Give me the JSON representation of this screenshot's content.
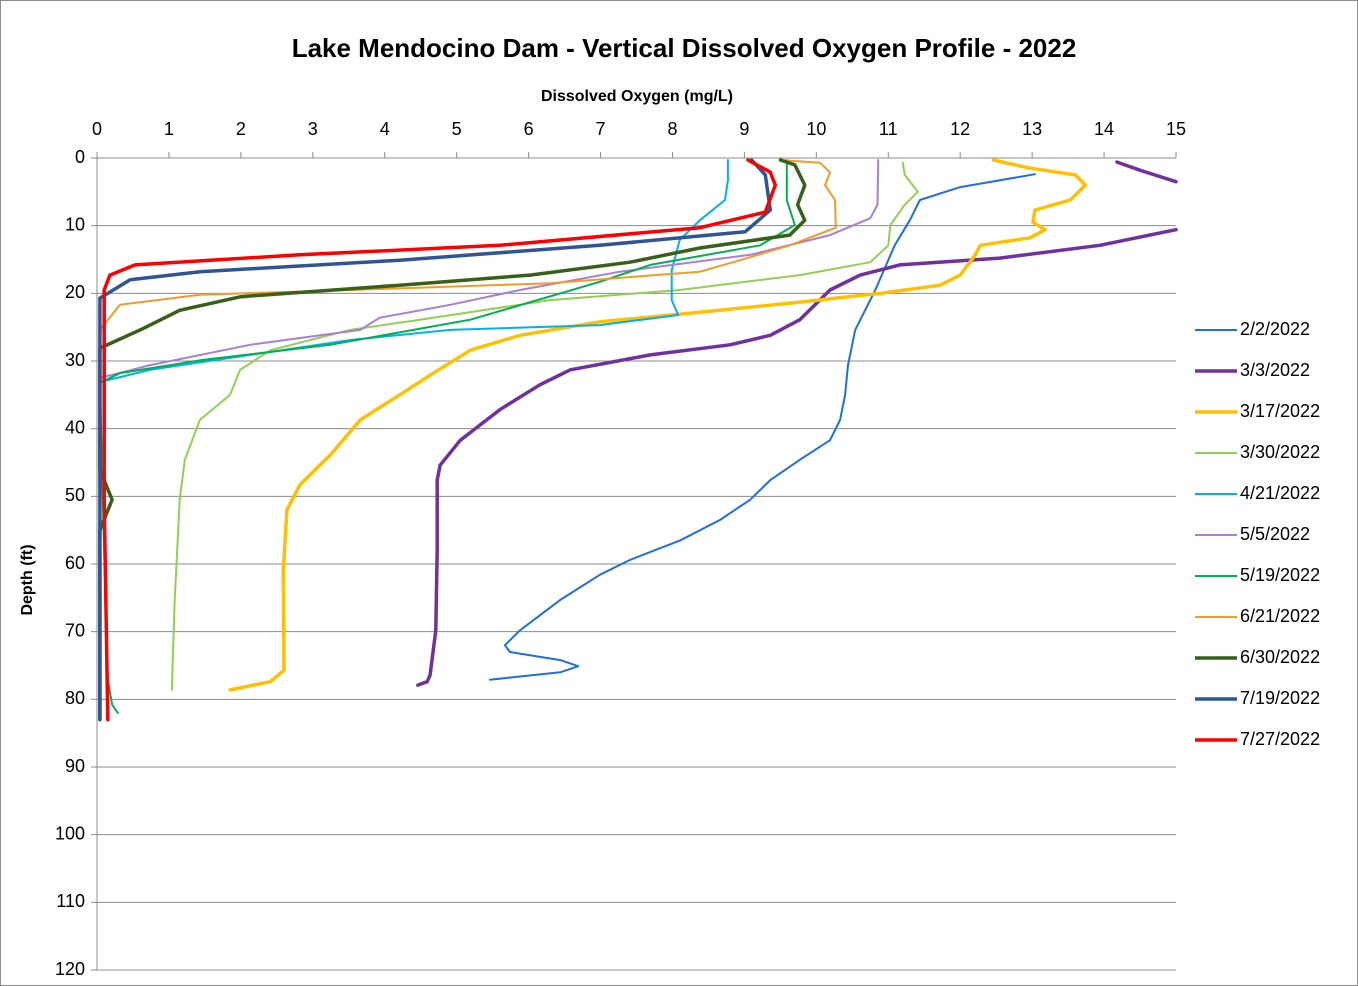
{
  "chart_data": {
    "type": "profile",
    "title": "Lake Mendocino Dam - Vertical Dissolved Oxygen Profile - 2022",
    "x_label": "Dissolved Oxygen (mg/L)",
    "y_label": "Depth (ft)",
    "xlim": [
      0,
      15
    ],
    "xticks": [
      0,
      1,
      2,
      3,
      4,
      5,
      6,
      7,
      8,
      9,
      10,
      11,
      12,
      13,
      14,
      15
    ],
    "ylim": [
      0,
      120
    ],
    "yticks": [
      0,
      10,
      20,
      30,
      40,
      50,
      60,
      70,
      80,
      90,
      100,
      110,
      120
    ],
    "y_inverted": true,
    "x_axis_position": "top",
    "grid": true,
    "legend": "right",
    "series": [
      {
        "name": "2/2/2022",
        "color": "#1f6fe0",
        "x": [
          13.04,
          12.0,
          11.44,
          11.3,
          11.09,
          10.82,
          10.54,
          10.44,
          10.4,
          10.33,
          10.19,
          9.77,
          9.36,
          9.08,
          8.66,
          8.11,
          7.41,
          6.99,
          6.44,
          5.88,
          5.67,
          5.74,
          6.44,
          6.69,
          6.44,
          5.46
        ],
        "y": [
          2.4,
          4.3,
          6.2,
          9.2,
          12.9,
          19.5,
          25.4,
          30.6,
          35,
          38.7,
          41.7,
          44.6,
          47.6,
          50.5,
          53.5,
          56.5,
          59.4,
          61.6,
          65.3,
          69.8,
          72,
          73,
          74.2,
          75.1,
          76,
          77.1
        ]
      },
      {
        "name": "3/3/2022",
        "color": "#7030a0",
        "x": [
          14.18,
          14.5,
          15,
          null,
          15,
          13.94,
          12.55,
          11.16,
          10.61,
          10.19,
          9.77,
          9.36,
          8.8,
          7.69,
          6.58,
          6.16,
          5.6,
          5.05,
          4.77,
          4.73,
          4.73,
          4.71,
          4.63,
          4.59,
          4.46
        ],
        "y": [
          0.6,
          1.8,
          3.5,
          null,
          10.6,
          12.9,
          14.8,
          15.8,
          17.3,
          19.5,
          23.9,
          26.2,
          27.6,
          29.1,
          31.3,
          33.5,
          37.2,
          41.7,
          45.4,
          47.6,
          57.9,
          69.8,
          76.4,
          77.4,
          77.9
        ]
      },
      {
        "name": "3/17/2022",
        "color": "#ffc000",
        "x": [
          12.46,
          12.97,
          13.6,
          13.74,
          13.53,
          13.04,
          13.01,
          13.18,
          12.97,
          12.28,
          12.21,
          12.0,
          11.72,
          10.89,
          9.77,
          8.38,
          6.99,
          5.88,
          5.19,
          4.63,
          4.21,
          3.66,
          3.24,
          2.82,
          2.64,
          2.59,
          2.6,
          2.41,
          1.85
        ],
        "y": [
          0.3,
          1.5,
          2.5,
          4,
          6.2,
          7.7,
          9.5,
          10.6,
          11.8,
          12.9,
          14.3,
          17.3,
          18.8,
          20,
          21.3,
          22.8,
          24.2,
          26.2,
          28.4,
          32.1,
          35,
          38.7,
          43.9,
          48.3,
          52,
          60.9,
          75.7,
          77.4,
          78.6
        ]
      },
      {
        "name": "3/30/2022",
        "color": "#92d050",
        "x": [
          11.2,
          11.23,
          11.41,
          11.23,
          11.03,
          11.0,
          10.75,
          9.77,
          8.1,
          6.3,
          4.49,
          3.52,
          2.41,
          1.99,
          1.85,
          1.43,
          1.22,
          1.15,
          1.08,
          1.04
        ],
        "y": [
          0.7,
          2.5,
          5,
          6.9,
          9.9,
          12.9,
          15.4,
          17.3,
          19.5,
          21,
          23.9,
          25.4,
          28.4,
          31.3,
          35,
          38.7,
          44.6,
          50.5,
          65.3,
          78.6
        ]
      },
      {
        "name": "4/21/2022",
        "color": "#00b0f0",
        "x": [
          8.77,
          8.77,
          8.73,
          8.38,
          8.1,
          7.99,
          7.99,
          8.08,
          6.99,
          4.91,
          3.52,
          2.13,
          0.74,
          0.04
        ],
        "y": [
          0.3,
          3.3,
          6.2,
          9.2,
          12.1,
          16.6,
          21,
          23.2,
          24.7,
          25.4,
          26.9,
          29.1,
          31.3,
          33.1
        ]
      },
      {
        "name": "5/5/2022",
        "color": "#a57fd8",
        "x": [
          10.86,
          10.85,
          10.75,
          10.19,
          9.08,
          7.27,
          5.88,
          4.91,
          3.93,
          3.66,
          2.13,
          0.74,
          0.04
        ],
        "y": [
          0.3,
          6.9,
          8.9,
          11.4,
          14.3,
          16.8,
          19.5,
          21.7,
          23.6,
          25.4,
          27.6,
          30.6,
          32.5
        ]
      },
      {
        "name": "5/19/2022",
        "color": "#00b050",
        "x": [
          9.59,
          9.59,
          9.7,
          9.22,
          7.69,
          6.99,
          5.19,
          3.24,
          1.43,
          0.32,
          0.04,
          0.08,
          0.15,
          0.21,
          0.29
        ],
        "y": [
          0.3,
          6.2,
          9.9,
          12.9,
          15.8,
          18.3,
          23.9,
          27.6,
          29.9,
          31.8,
          33.2,
          50.5,
          77.1,
          80.8,
          82
        ]
      },
      {
        "name": "6/21/2022",
        "color": "#f59a23",
        "x": [
          9.5,
          10.05,
          10.19,
          10.12,
          10.26,
          10.27,
          9.63,
          8.94,
          8.38,
          6.3,
          3.52,
          1.43,
          0.32,
          0.04
        ],
        "y": [
          0.3,
          0.7,
          2.1,
          4,
          6.2,
          10.3,
          12.9,
          15.1,
          16.8,
          18.5,
          19.5,
          20.2,
          21.7,
          25.4
        ]
      },
      {
        "name": "6/30/2022",
        "color": "#376018",
        "x": [
          9.5,
          9.7,
          9.84,
          9.74,
          9.84,
          9.63,
          8.38,
          7.41,
          6.02,
          4.21,
          2.0,
          1.15,
          0.6,
          0.04,
          0.04,
          0.21,
          0.04,
          0.04
        ],
        "y": [
          0.3,
          1,
          4,
          6.9,
          9.2,
          11.4,
          13.3,
          15.4,
          17.3,
          18.8,
          20.5,
          22.5,
          25.4,
          28.1,
          46.1,
          50.5,
          55,
          83
        ]
      },
      {
        "name": "7/19/2022",
        "color": "#2f5597",
        "x": [
          9.1,
          9.29,
          9.36,
          9.01,
          6.99,
          4.21,
          1.43,
          0.46,
          0.04,
          0.04
        ],
        "y": [
          0.3,
          2.5,
          7.7,
          10.9,
          12.9,
          15.1,
          16.8,
          18,
          20.7,
          83
        ]
      },
      {
        "name": "7/27/2022",
        "color": "#ff0000",
        "x": [
          9.05,
          9.36,
          9.43,
          9.29,
          8.38,
          5.6,
          2.82,
          0.53,
          0.18,
          0.1,
          0.1,
          0.15
        ],
        "y": [
          0.3,
          2.1,
          4,
          8,
          10.3,
          12.9,
          14.3,
          15.8,
          17.3,
          19.5,
          50.5,
          83
        ]
      }
    ]
  }
}
